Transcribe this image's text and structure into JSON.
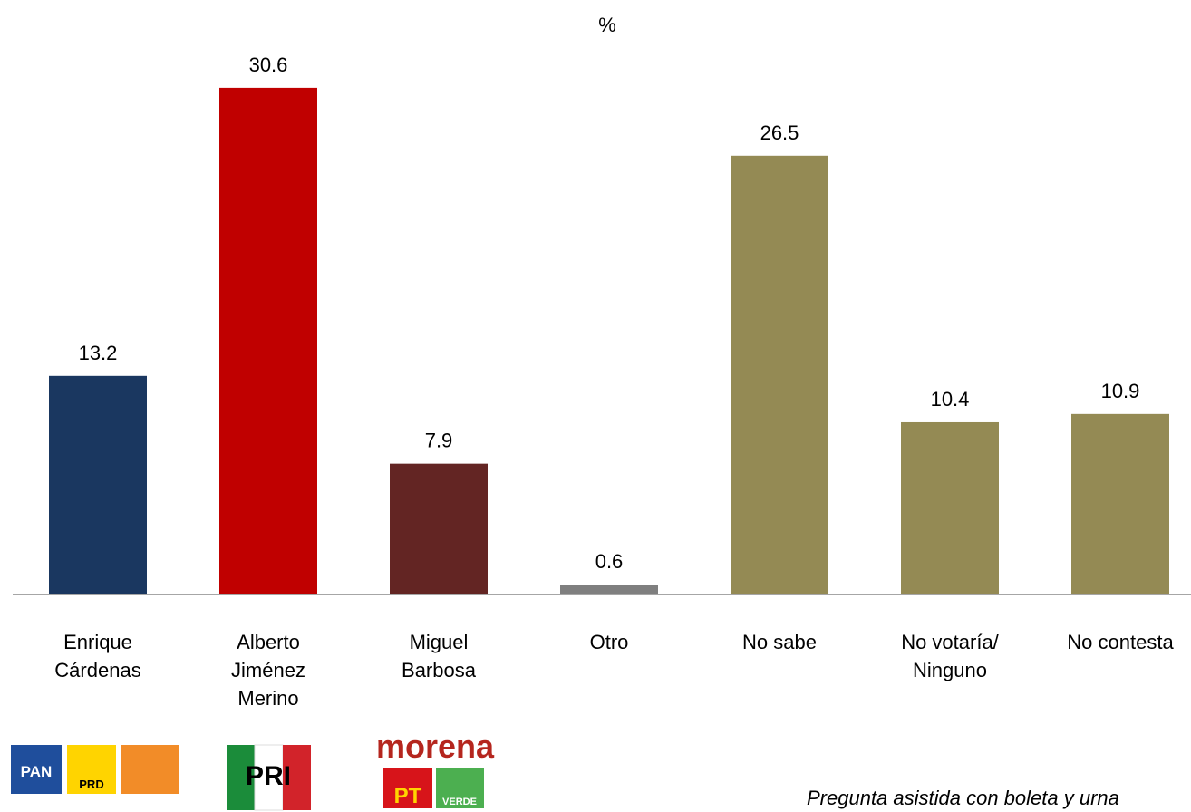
{
  "chart_data": {
    "type": "bar",
    "title": "%",
    "categories": [
      "Enrique\nCárdenas",
      "Alberto\nJiménez\nMerino",
      "Miguel\nBarbosa",
      "Otro",
      "No sabe",
      "No votaría/\nNinguno",
      "No contesta"
    ],
    "values": [
      13.2,
      30.6,
      7.9,
      0.6,
      26.5,
      10.4,
      10.9
    ],
    "colors": [
      "#1a3760",
      "#c00000",
      "#632523",
      "#7f7f7f",
      "#948a54",
      "#948a54",
      "#948a54"
    ],
    "ylim": [
      0,
      35
    ],
    "annotations": [
      "Pregunta asistida con boleta y urna"
    ],
    "logos": [
      "PAN",
      "PRD",
      "PRI",
      "morena",
      "PT",
      "VERDE"
    ]
  }
}
